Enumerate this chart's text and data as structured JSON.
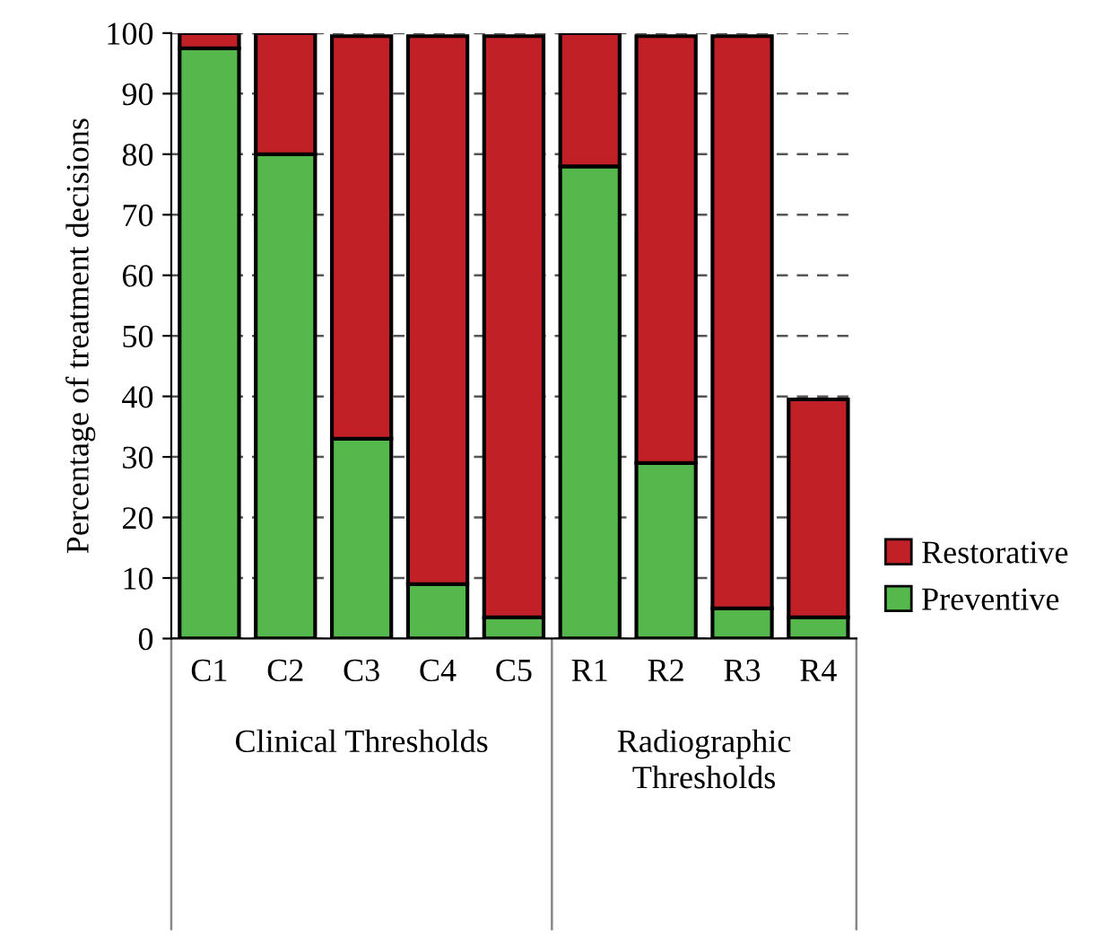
{
  "chart_data": {
    "type": "bar",
    "stacked": true,
    "ylabel": "Percentage of treatment decisions",
    "categories": [
      "C1",
      "C2",
      "C3",
      "C4",
      "C5",
      "R1",
      "R2",
      "R3",
      "R4"
    ],
    "series": [
      {
        "name": "Preventive",
        "color": "#55b84d",
        "values": [
          97.5,
          80,
          33,
          9,
          3.5,
          78,
          29,
          5,
          3.5
        ]
      },
      {
        "name": "Restorative",
        "color": "#c02026",
        "values": [
          2.5,
          20,
          66.5,
          90.5,
          96,
          22,
          70.5,
          94.5,
          36
        ]
      }
    ],
    "ylim": [
      0,
      100
    ],
    "yticks": [
      0,
      10,
      20,
      30,
      40,
      50,
      60,
      70,
      80,
      90,
      100
    ],
    "grid": "y",
    "legend": "right",
    "annotations": [
      "Clinical Thresholds",
      "Radiographic Thresholds"
    ]
  }
}
